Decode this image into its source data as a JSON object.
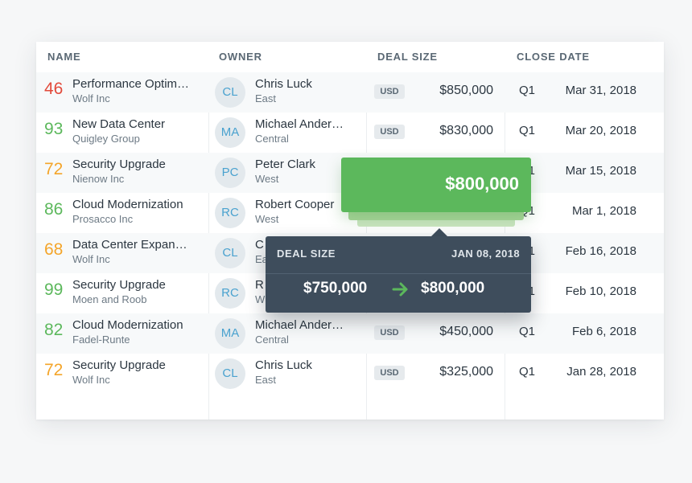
{
  "colors": {
    "score_red": "#e24a3b",
    "score_green": "#5cb85c",
    "score_orange": "#f4a52a",
    "avatar_text": "#4aa2cf",
    "tooltip_bg": "#3e4d5c",
    "highlight_green": "#5cb85c"
  },
  "columns": {
    "name": "NAME",
    "owner": "OWNER",
    "deal_size": "DEAL SIZE",
    "close_date": "CLOSE DATE"
  },
  "rows": [
    {
      "score": "46",
      "score_level": "red",
      "name": "Performance Optim…",
      "company": "Wolf Inc",
      "owner_initials": "CL",
      "owner_name": "Chris Luck",
      "region": "East",
      "currency": "USD",
      "amount": "$850,000",
      "quarter": "Q1",
      "date": "Mar 31, 2018"
    },
    {
      "score": "93",
      "score_level": "green",
      "name": "New Data Center",
      "company": "Quigley Group",
      "owner_initials": "MA",
      "owner_name": "Michael Ander…",
      "region": "Central",
      "currency": "USD",
      "amount": "$830,000",
      "quarter": "Q1",
      "date": "Mar 20, 2018"
    },
    {
      "score": "72",
      "score_level": "orange",
      "name": "Security Upgrade",
      "company": "Nienow Inc",
      "owner_initials": "PC",
      "owner_name": "Peter Clark",
      "region": "West",
      "currency": "",
      "amount": "",
      "quarter": "Q1",
      "date": "Mar 15, 2018"
    },
    {
      "score": "86",
      "score_level": "green",
      "name": "Cloud Modernization",
      "company": "Prosacco Inc",
      "owner_initials": "RC",
      "owner_name": "Robert Cooper",
      "region": "West",
      "currency": "",
      "amount": "",
      "quarter": "Q1",
      "date": "Mar 1, 2018"
    },
    {
      "score": "68",
      "score_level": "orange",
      "name": "Data Center Expan…",
      "company": "Wolf Inc",
      "owner_initials": "CL",
      "owner_name": "C",
      "region": "Ea",
      "currency": "",
      "amount": "",
      "quarter": "Q1",
      "date": "Feb 16, 2018"
    },
    {
      "score": "99",
      "score_level": "green",
      "name": "Security Upgrade",
      "company": "Moen and Roob",
      "owner_initials": "RC",
      "owner_name": "R",
      "region": "W",
      "currency": "",
      "amount": "",
      "quarter": "Q1",
      "date": "Feb 10, 2018"
    },
    {
      "score": "82",
      "score_level": "green",
      "name": "Cloud Modernization",
      "company": "Fadel-Runte",
      "owner_initials": "MA",
      "owner_name": "Michael Ander…",
      "region": "Central",
      "currency": "USD",
      "amount": "$450,000",
      "quarter": "Q1",
      "date": "Feb 6, 2018"
    },
    {
      "score": "72",
      "score_level": "orange",
      "name": "Security Upgrade",
      "company": "Wolf Inc",
      "owner_initials": "CL",
      "owner_name": "Chris Luck",
      "region": "East",
      "currency": "USD",
      "amount": "$325,000",
      "quarter": "Q1",
      "date": "Jan 28, 2018"
    }
  ],
  "highlight": {
    "amount": "$800,000"
  },
  "tooltip": {
    "title": "DEAL SIZE",
    "date": "JAN 08, 2018",
    "old_value": "$750,000",
    "new_value": "$800,000",
    "arrow_icon": "arrow-right-icon"
  }
}
